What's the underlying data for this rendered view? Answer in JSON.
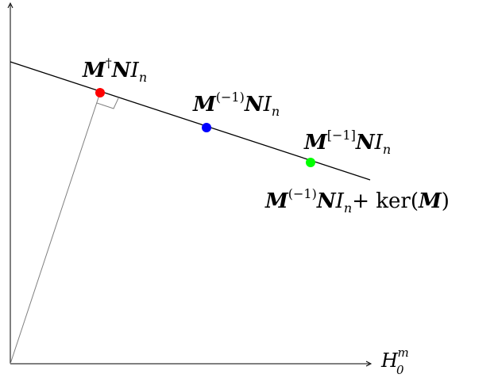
{
  "axes": {
    "x_label": {
      "main": "H",
      "sub": "0",
      "sup": "m"
    }
  },
  "line_label": {
    "M": "M",
    "sup": "(−1)",
    "N": "N",
    "I": "I",
    "n": "n",
    "plus": "+ ker(",
    "M2": "M",
    "close": ")"
  },
  "points": [
    {
      "id": "mp",
      "color": "#ff0000",
      "label": {
        "M": "M",
        "sup": "†",
        "N": "N",
        "I": "I",
        "n": "n"
      }
    },
    {
      "id": "m1",
      "color": "#0000ff",
      "label": {
        "M": "M",
        "sup": "(−1)",
        "N": "N",
        "I": "I",
        "n": "n"
      }
    },
    {
      "id": "mb",
      "color": "#00ff00",
      "label": {
        "M": "M",
        "sup": "[−1]",
        "N": "N",
        "I": "I",
        "n": "n"
      }
    }
  ]
}
